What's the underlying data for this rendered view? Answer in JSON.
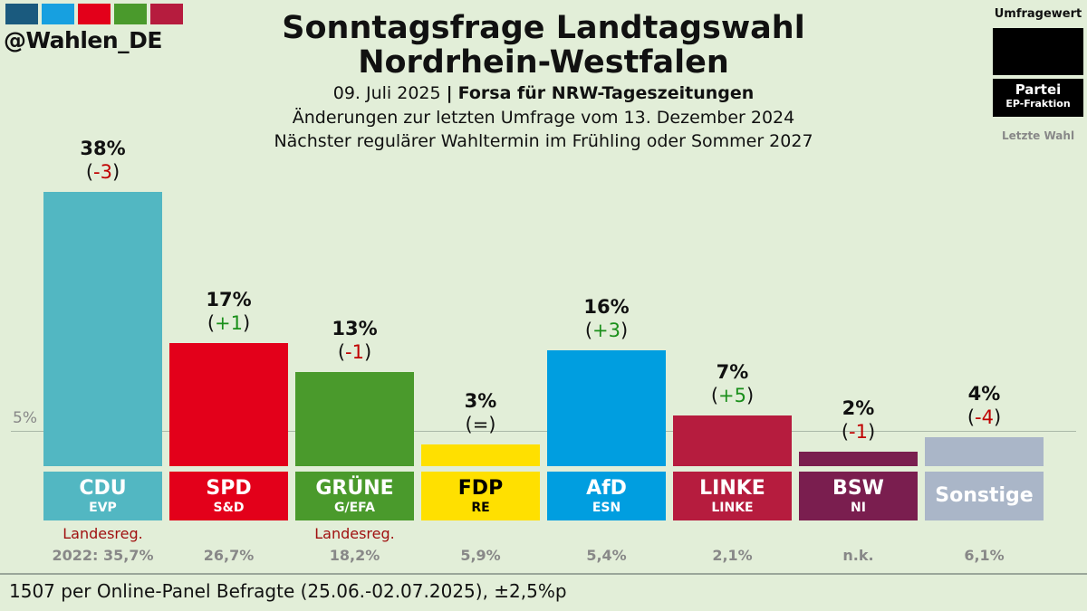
{
  "brand": {
    "handle": "@Wahlen_DE",
    "logo_colors": [
      "#1a5a7e",
      "#17a0e0",
      "#e3001a",
      "#4a9a2c",
      "#b61c3e"
    ]
  },
  "header": {
    "title_line1": "Sonntagsfrage Landtagswahl",
    "title_line2": "Nordrhein-Westfalen",
    "date": "09. Juli 2025",
    "separator": "|",
    "source": "Forsa für NRW-Tageszeitungen",
    "changes_note": "Änderungen zur letzten Umfrage vom 13. Dezember 2024",
    "next_election": "Nächster regulärer Wahltermin im Frühling oder Sommer 2027"
  },
  "legend": {
    "value": "Umfragewert",
    "party": "Partei",
    "faction": "EP-Fraktion",
    "last": "Letzte Wahl"
  },
  "threshold_label": "5%",
  "chart_data": {
    "type": "bar",
    "categories": [
      "CDU",
      "SPD",
      "GRÜNE",
      "FDP",
      "AfD",
      "LINKE",
      "BSW",
      "Sonstige"
    ],
    "values": [
      38,
      17,
      13,
      3,
      16,
      7,
      2,
      4
    ],
    "value_labels": [
      "38%",
      "17%",
      "13%",
      "3%",
      "16%",
      "7%",
      "2%",
      "4%"
    ],
    "changes": [
      "-3",
      "+1",
      "-1",
      "=",
      "+3",
      "+5",
      "-1",
      "-4"
    ],
    "factions": [
      "EVP",
      "S&D",
      "G/EFA",
      "RE",
      "ESN",
      "LINKE",
      "NI",
      ""
    ],
    "colors": [
      "#52b7c2",
      "#e3001a",
      "#4a9a2c",
      "#ffe000",
      "#009ee0",
      "#b61c3e",
      "#7a1e4f",
      "#aab6c8"
    ],
    "label_text_colors": [
      "#ffffff",
      "#ffffff",
      "#ffffff",
      "#000000",
      "#ffffff",
      "#ffffff",
      "#ffffff",
      "#ffffff"
    ],
    "government": [
      "Landesreg.",
      "",
      "Landesreg.",
      "",
      "",
      "",
      "",
      ""
    ],
    "last_election": [
      "2022: 35,7%",
      "26,7%",
      "18,2%",
      "5,9%",
      "5,4%",
      "2,1%",
      "n.k.",
      "6,1%"
    ],
    "threshold": 5,
    "ylim": [
      0,
      40
    ],
    "change_colors": {
      "minus": "#c00000",
      "plus": "#1a8f1a",
      "plus_strong": "#22aa22",
      "equal": "#111111"
    }
  },
  "footer": "1507 per Online-Panel Befragte (25.06.-02.07.2025), ±2,5%p"
}
